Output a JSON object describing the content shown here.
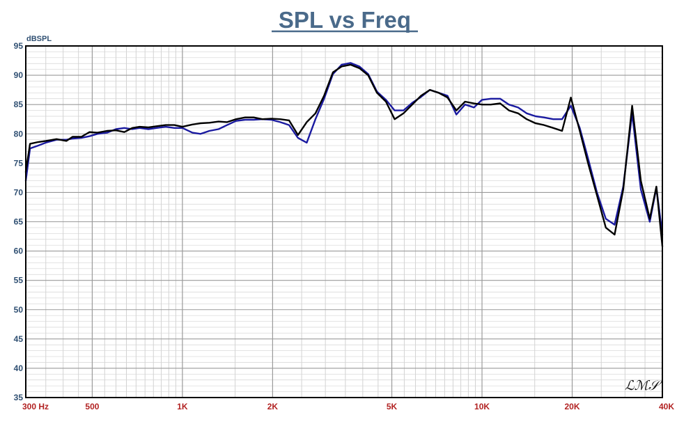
{
  "chart_data": {
    "type": "line",
    "title": "SPL vs Freq",
    "ylabel": "dBSPL",
    "xlabel": "",
    "xscale": "log",
    "xlim": [
      300,
      40000
    ],
    "ylim": [
      35,
      95
    ],
    "grid": true,
    "yticks": [
      "35",
      "40",
      "45",
      "50",
      "55",
      "60",
      "65",
      "70",
      "75",
      "80",
      "85",
      "90",
      "95"
    ],
    "xticks": [
      {
        "value": 300,
        "label": "300  Hz"
      },
      {
        "value": 500,
        "label": "500"
      },
      {
        "value": 1000,
        "label": "1K"
      },
      {
        "value": 2000,
        "label": "2K"
      },
      {
        "value": 5000,
        "label": "5K"
      },
      {
        "value": 10000,
        "label": "10K"
      },
      {
        "value": 20000,
        "label": "20K"
      },
      {
        "value": 40000,
        "label": "40K"
      }
    ],
    "colors": {
      "series1": "#000000",
      "series2": "#1a1aa0",
      "title": "#4a6a8a",
      "ytick": "#2f4f72",
      "xtick": "#b22222"
    },
    "series": [
      {
        "x": [
          300,
          310,
          330,
          350,
          380,
          410,
          430,
          460,
          490,
          520,
          560,
          600,
          640,
          680,
          720,
          770,
          820,
          880,
          940,
          1000,
          1080,
          1150,
          1230,
          1320,
          1410,
          1510,
          1620,
          1730,
          1850,
          1980,
          2120,
          2270,
          2430,
          2600,
          2780,
          2970,
          3180,
          3400,
          3640,
          3900,
          4170,
          4460,
          4780,
          5110,
          5470,
          5850,
          6260,
          6700,
          7170,
          7670,
          8210,
          8780,
          9400,
          10000,
          10700,
          11500,
          12300,
          13200,
          14100,
          15100,
          16100,
          17300,
          18500,
          19800,
          21200,
          22600,
          24200,
          25900,
          27700,
          29600,
          31700,
          33900,
          36300,
          38200,
          40000
        ],
        "values": [
          73.5,
          78.3,
          78.6,
          78.8,
          79.1,
          78.8,
          79.5,
          79.5,
          80.3,
          80.2,
          80.5,
          80.6,
          80.3,
          81.0,
          81.2,
          81.1,
          81.3,
          81.5,
          81.5,
          81.2,
          81.6,
          81.8,
          81.9,
          82.1,
          82.0,
          82.5,
          82.8,
          82.8,
          82.5,
          82.6,
          82.5,
          82.3,
          79.8,
          82.0,
          83.5,
          86.5,
          90.5,
          91.5,
          91.8,
          91.2,
          90.0,
          87.0,
          85.5,
          82.5,
          83.5,
          85.0,
          86.5,
          87.5,
          87.0,
          86.2,
          84.0,
          85.5,
          85.2,
          85.0,
          85.0,
          85.2,
          84.0,
          83.5,
          82.5,
          81.8,
          81.5,
          81.0,
          80.5,
          86.2,
          80.5,
          75.0,
          69.5,
          64.0,
          62.8,
          70.5,
          84.8,
          72.0,
          65.5,
          71.0,
          60.8
        ]
      },
      {
        "x": [
          300,
          310,
          330,
          350,
          380,
          410,
          430,
          460,
          490,
          520,
          560,
          600,
          640,
          680,
          720,
          770,
          820,
          880,
          940,
          1000,
          1080,
          1150,
          1230,
          1320,
          1410,
          1510,
          1620,
          1730,
          1850,
          1980,
          2120,
          2270,
          2430,
          2600,
          2780,
          2970,
          3180,
          3400,
          3640,
          3900,
          4170,
          4460,
          4780,
          5110,
          5470,
          5850,
          6260,
          6700,
          7170,
          7670,
          8210,
          8780,
          9400,
          10000,
          10700,
          11500,
          12300,
          13200,
          14100,
          15100,
          16100,
          17300,
          18500,
          19800,
          21200,
          22600,
          24200,
          25900,
          27700,
          29600,
          31700,
          33900,
          36300,
          38200,
          40000
        ],
        "values": [
          72.0,
          77.5,
          78.0,
          78.5,
          79.0,
          79.0,
          79.2,
          79.3,
          79.6,
          80.0,
          80.2,
          80.8,
          81.0,
          80.8,
          81.0,
          80.8,
          81.0,
          81.2,
          81.0,
          81.0,
          80.2,
          80.0,
          80.5,
          80.8,
          81.5,
          82.2,
          82.4,
          82.4,
          82.5,
          82.4,
          82.0,
          81.5,
          79.3,
          78.5,
          82.5,
          86.0,
          90.2,
          91.8,
          92.1,
          91.5,
          90.2,
          87.2,
          85.8,
          84.0,
          84.0,
          85.3,
          86.3,
          87.5,
          87.0,
          86.5,
          83.3,
          85.0,
          84.5,
          85.8,
          86.0,
          86.0,
          85.0,
          84.5,
          83.5,
          83.0,
          82.8,
          82.5,
          82.5,
          84.8,
          81.0,
          75.8,
          70.0,
          65.5,
          64.5,
          71.0,
          83.5,
          70.5,
          65.0,
          70.8,
          62.8
        ]
      }
    ]
  },
  "watermark": "LMS"
}
